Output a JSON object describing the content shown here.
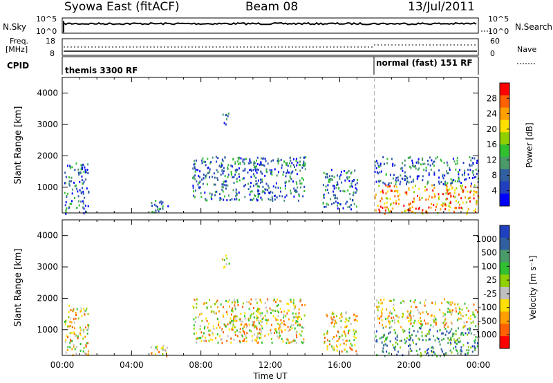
{
  "header": {
    "station": "Syowa East (fitACF)",
    "beam": "Beam 08",
    "date": "13/Jul/2011"
  },
  "noise_panel": {
    "left_label": "N.Sky",
    "right_label": "N.Search",
    "left_ticks": [
      "10^5",
      "10^0"
    ],
    "right_ticks": [
      "10^5",
      "10^0"
    ]
  },
  "freq_panel": {
    "left_label_1": "Freq.",
    "left_label_2": "[MHz]",
    "right_label": "Nave",
    "left_ticks": [
      "18",
      "8"
    ],
    "right_ticks": [
      "60",
      "0"
    ]
  },
  "cpid_panel": {
    "label": "CPID",
    "mode_1": "themis 3300 RF",
    "mode_2": "normal (fast) 151 RF"
  },
  "x_axis": {
    "label": "Time UT",
    "ticks": [
      "00:00",
      "04:00",
      "08:00",
      "12:00",
      "16:00",
      "20:00",
      "00:00"
    ]
  },
  "power_panel": {
    "ylabel": "Slant Range [km]",
    "yticks": [
      "4000",
      "3000",
      "2000",
      "1000"
    ],
    "colorbar_label": "Power [dB]",
    "colorbar_ticks": [
      "28",
      "24",
      "20",
      "16",
      "12",
      "8",
      "4"
    ],
    "colors": [
      "#ff0000",
      "#ff6000",
      "#ffa000",
      "#ffe000",
      "#90d000",
      "#30c030",
      "#4a9a6a",
      "#3060a0",
      "#2040c0",
      "#0000ff"
    ]
  },
  "velocity_panel": {
    "ylabel": "Slant Range [km]",
    "yticks": [
      "4000",
      "3000",
      "2000",
      "1000"
    ],
    "colorbar_label": "Velocity [m s⁻¹]",
    "colorbar_ticks": [
      "1000",
      "500",
      "100",
      "25",
      "-25",
      "-100",
      "-500",
      "-1000"
    ],
    "colors": [
      "#2040c0",
      "#3060a0",
      "#4a9a6a",
      "#30c030",
      "#90d000",
      "#c0c0c0",
      "#ffe000",
      "#ffa000",
      "#ff6000",
      "#ff0000"
    ]
  },
  "chart_data": {
    "type": "heatmap",
    "x_range_hours": [
      0,
      24
    ],
    "y_range_km": [
      180,
      4500
    ],
    "mode_change_hour": 18,
    "scatter_regions": [
      {
        "t0": 0.1,
        "t1": 1.5,
        "r0": 180,
        "r1": 1800,
        "level": "mixed"
      },
      {
        "t0": 5.0,
        "t1": 6.2,
        "r0": 180,
        "r1": 600,
        "level": "mixed"
      },
      {
        "t0": 7.5,
        "t1": 11.5,
        "r0": 600,
        "r1": 2000,
        "level": "mixed"
      },
      {
        "t0": 9.2,
        "t1": 9.6,
        "r0": 2900,
        "r1": 3400,
        "level": "mixed"
      },
      {
        "t0": 11.0,
        "t1": 14.0,
        "r0": 600,
        "r1": 2000,
        "level": "mixed"
      },
      {
        "t0": 15.0,
        "t1": 17.0,
        "r0": 300,
        "r1": 1600,
        "level": "mixed"
      },
      {
        "t0": 18.0,
        "t1": 24.0,
        "r0": 180,
        "r1": 2000,
        "level": "mixed"
      }
    ]
  }
}
